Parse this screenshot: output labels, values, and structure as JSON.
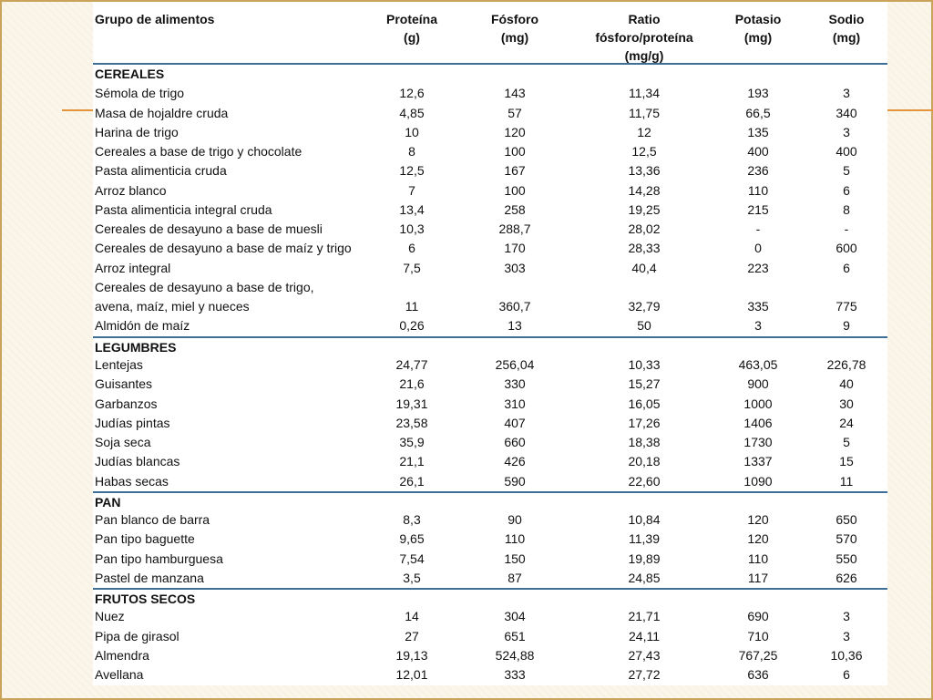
{
  "header": {
    "col_food": "Grupo de alimentos",
    "col_protein": "Proteína\n(g)",
    "col_phosphorus": "Fósforo\n(mg)",
    "col_ratio": "Ratio\nfósforo/proteína\n(mg/g)",
    "col_potassium": "Potasio\n(mg)",
    "col_sodium": "Sodio\n(mg)"
  },
  "groups": [
    {
      "name": "CEREALES",
      "items": [
        {
          "name": "Sémola de trigo",
          "protein": "12,6",
          "phosphorus": "143",
          "ratio": "11,34",
          "potassium": "193",
          "sodium": "3"
        },
        {
          "name": "Masa de hojaldre cruda",
          "protein": "4,85",
          "phosphorus": "57",
          "ratio": "11,75",
          "potassium": "66,5",
          "sodium": "340"
        },
        {
          "name": "Harina de trigo",
          "protein": "10",
          "phosphorus": "120",
          "ratio": "12",
          "potassium": "135",
          "sodium": "3"
        },
        {
          "name": "Cereales a base de trigo y chocolate",
          "protein": "8",
          "phosphorus": "100",
          "ratio": "12,5",
          "potassium": "400",
          "sodium": "400"
        },
        {
          "name": "Pasta alimenticia cruda",
          "protein": "12,5",
          "phosphorus": "167",
          "ratio": "13,36",
          "potassium": "236",
          "sodium": "5"
        },
        {
          "name": "Arroz blanco",
          "protein": "7",
          "phosphorus": "100",
          "ratio": "14,28",
          "potassium": "110",
          "sodium": "6"
        },
        {
          "name": "Pasta alimenticia integral cruda",
          "protein": "13,4",
          "phosphorus": "258",
          "ratio": "19,25",
          "potassium": "215",
          "sodium": "8"
        },
        {
          "name": "Cereales de desayuno a base de muesli",
          "protein": "10,3",
          "phosphorus": "288,7",
          "ratio": "28,02",
          "potassium": "-",
          "sodium": "-"
        },
        {
          "name": "Cereales de desayuno a base de maíz y trigo",
          "protein": "6",
          "phosphorus": "170",
          "ratio": "28,33",
          "potassium": "0",
          "sodium": "600"
        },
        {
          "name": "Arroz integral",
          "protein": "7,5",
          "phosphorus": "303",
          "ratio": "40,4",
          "potassium": "223",
          "sodium": "6"
        },
        {
          "name": "Cereales de desayuno a base de trigo,",
          "protein": "",
          "phosphorus": "",
          "ratio": "",
          "potassium": "",
          "sodium": ""
        },
        {
          "name": "avena, maíz, miel y nueces",
          "protein": "11",
          "phosphorus": "360,7",
          "ratio": "32,79",
          "potassium": "335",
          "sodium": "775"
        },
        {
          "name": "Almidón de maíz",
          "protein": "0,26",
          "phosphorus": "13",
          "ratio": "50",
          "potassium": "3",
          "sodium": "9"
        }
      ]
    },
    {
      "name": "LEGUMBRES",
      "items": [
        {
          "name": "Lentejas",
          "protein": "24,77",
          "phosphorus": "256,04",
          "ratio": "10,33",
          "potassium": "463,05",
          "sodium": "226,78"
        },
        {
          "name": "Guisantes",
          "protein": "21,6",
          "phosphorus": "330",
          "ratio": "15,27",
          "potassium": "900",
          "sodium": "40"
        },
        {
          "name": "Garbanzos",
          "protein": "19,31",
          "phosphorus": "310",
          "ratio": "16,05",
          "potassium": "1000",
          "sodium": "30"
        },
        {
          "name": "Judías pintas",
          "protein": "23,58",
          "phosphorus": "407",
          "ratio": "17,26",
          "potassium": "1406",
          "sodium": "24"
        },
        {
          "name": "Soja seca",
          "protein": "35,9",
          "phosphorus": "660",
          "ratio": "18,38",
          "potassium": "1730",
          "sodium": "5"
        },
        {
          "name": "Judías blancas",
          "protein": "21,1",
          "phosphorus": "426",
          "ratio": "20,18",
          "potassium": "1337",
          "sodium": "15"
        },
        {
          "name": "Habas secas",
          "protein": "26,1",
          "phosphorus": "590",
          "ratio": "22,60",
          "potassium": "1090",
          "sodium": "11"
        }
      ]
    },
    {
      "name": "PAN",
      "items": [
        {
          "name": "Pan blanco de barra",
          "protein": "8,3",
          "phosphorus": "90",
          "ratio": "10,84",
          "potassium": "120",
          "sodium": "650"
        },
        {
          "name": "Pan tipo baguette",
          "protein": "9,65",
          "phosphorus": "110",
          "ratio": "11,39",
          "potassium": "120",
          "sodium": "570"
        },
        {
          "name": "Pan tipo hamburguesa",
          "protein": "7,54",
          "phosphorus": "150",
          "ratio": "19,89",
          "potassium": "110",
          "sodium": "550"
        },
        {
          "name": "Pastel de manzana",
          "protein": "3,5",
          "phosphorus": "87",
          "ratio": "24,85",
          "potassium": "117",
          "sodium": "626"
        }
      ]
    },
    {
      "name": "FRUTOS SECOS",
      "items": [
        {
          "name": "Nuez",
          "protein": "14",
          "phosphorus": "304",
          "ratio": "21,71",
          "potassium": "690",
          "sodium": "3"
        },
        {
          "name": "Pipa de girasol",
          "protein": "27",
          "phosphorus": "651",
          "ratio": "24,11",
          "potassium": "710",
          "sodium": "3"
        },
        {
          "name": "Almendra",
          "protein": "19,13",
          "phosphorus": "524,88",
          "ratio": "27,43",
          "potassium": "767,25",
          "sodium": "10,36"
        },
        {
          "name": "Avellana",
          "protein": "12,01",
          "phosphorus": "333",
          "ratio": "27,72",
          "potassium": "636",
          "sodium": "6"
        }
      ]
    }
  ]
}
